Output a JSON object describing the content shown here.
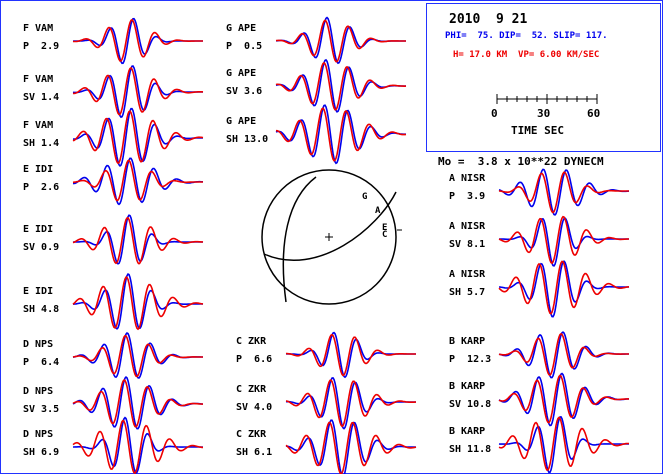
{
  "event": {
    "date": "2010  9 21",
    "mechanism": "PHI=  75. DIP=  52. SLIP= 117.",
    "depth_velocity": "H= 17.0 KM  VP= 6.00 KM/SEC",
    "moment": "Mo =  3.8 x 10**22 DYNECM"
  },
  "time_scale": {
    "ticks": [
      "0",
      "30",
      "60"
    ],
    "label": "TIME  SEC"
  },
  "colors": {
    "observed": "#0000ee",
    "synthetic": "#ee0000",
    "frame": "#2233ff"
  },
  "stations": [
    {
      "code": "F VAM",
      "phase": "P  2.9"
    },
    {
      "code": "F VAM",
      "phase": "SV 1.4"
    },
    {
      "code": "F VAM",
      "phase": "SH 1.4"
    },
    {
      "code": "E IDI",
      "phase": "P  2.6"
    },
    {
      "code": "E IDI",
      "phase": "SV 0.9"
    },
    {
      "code": "E IDI",
      "phase": "SH 4.8"
    },
    {
      "code": "D NPS",
      "phase": "P  6.4"
    },
    {
      "code": "D NPS",
      "phase": "SV 3.5"
    },
    {
      "code": "D NPS",
      "phase": "SH 6.9"
    },
    {
      "code": "G APE",
      "phase": "P  0.5"
    },
    {
      "code": "G APE",
      "phase": "SV 3.6"
    },
    {
      "code": "G APE",
      "phase": "SH 13.0"
    },
    {
      "code": "C ZKR",
      "phase": "P  6.6"
    },
    {
      "code": "C ZKR",
      "phase": "SV 4.0"
    },
    {
      "code": "C ZKR",
      "phase": "SH 6.1"
    },
    {
      "code": "A NISR",
      "phase": "P  3.9"
    },
    {
      "code": "A NISR",
      "phase": "SV 8.1"
    },
    {
      "code": "A NISR",
      "phase": "SH 5.7"
    },
    {
      "code": "B KARP",
      "phase": "P  12.3"
    },
    {
      "code": "B KARP",
      "phase": "SV 10.8"
    },
    {
      "code": "B KARP",
      "phase": "SH 11.8"
    }
  ],
  "focal_sphere": {
    "station_letters": [
      "G",
      "A",
      "E",
      "C"
    ]
  }
}
